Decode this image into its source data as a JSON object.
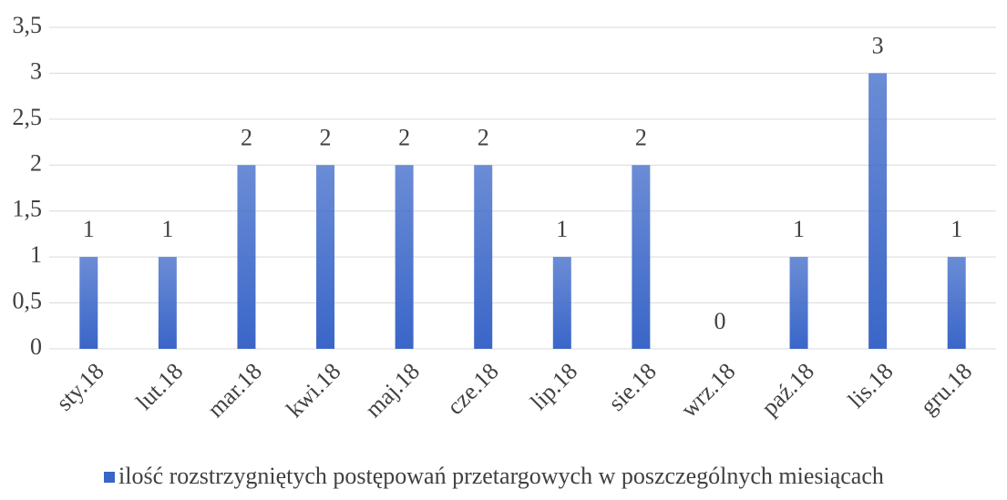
{
  "chart_data": {
    "type": "bar",
    "categories": [
      "sty.18",
      "lut.18",
      "mar.18",
      "kwi.18",
      "maj.18",
      "cze.18",
      "lip.18",
      "sie.18",
      "wrz.18",
      "paź.18",
      "lis.18",
      "gru.18"
    ],
    "series": [
      {
        "name": "ilość rozstrzygniętych postępowań przetargowych w poszczególnych miesiącach",
        "color": "#3a66c8",
        "values": [
          1,
          1,
          2,
          2,
          2,
          2,
          1,
          2,
          0,
          1,
          3,
          1
        ]
      }
    ],
    "ylim": [
      0,
      3.5
    ],
    "yticks": [
      0,
      {
        "value": 0.5,
        "label": "0,5"
      },
      1,
      {
        "value": 1.5,
        "label": "1,5"
      },
      2,
      {
        "value": 2.5,
        "label": "2,5"
      },
      3,
      {
        "value": 3.5,
        "label": "3,5"
      }
    ],
    "grid": true,
    "legend": "bottom"
  }
}
